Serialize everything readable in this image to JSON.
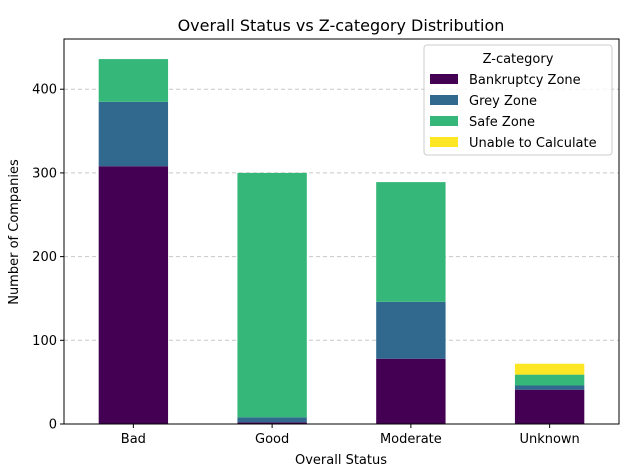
{
  "chart_data": {
    "type": "bar",
    "stacked": true,
    "title": "Overall Status vs Z-category Distribution",
    "xlabel": "Overall Status",
    "ylabel": "Number of Companies",
    "categories": [
      "Bad",
      "Good",
      "Moderate",
      "Unknown"
    ],
    "series": [
      {
        "name": "Bankruptcy Zone",
        "values": [
          308,
          2,
          78,
          41
        ],
        "color": "#440154"
      },
      {
        "name": "Grey Zone",
        "values": [
          77,
          6,
          68,
          5
        ],
        "color": "#31688e"
      },
      {
        "name": "Safe Zone",
        "values": [
          51,
          292,
          143,
          13
        ],
        "color": "#35b779"
      },
      {
        "name": "Unable to Calculate",
        "values": [
          0,
          0,
          0,
          13
        ],
        "color": "#fde725"
      }
    ],
    "ylim": [
      0,
      460
    ],
    "yticks": [
      0,
      100,
      200,
      300,
      400
    ],
    "grid": "y-dashed",
    "legend": {
      "title": "Z-category",
      "placement": "top-right"
    }
  }
}
